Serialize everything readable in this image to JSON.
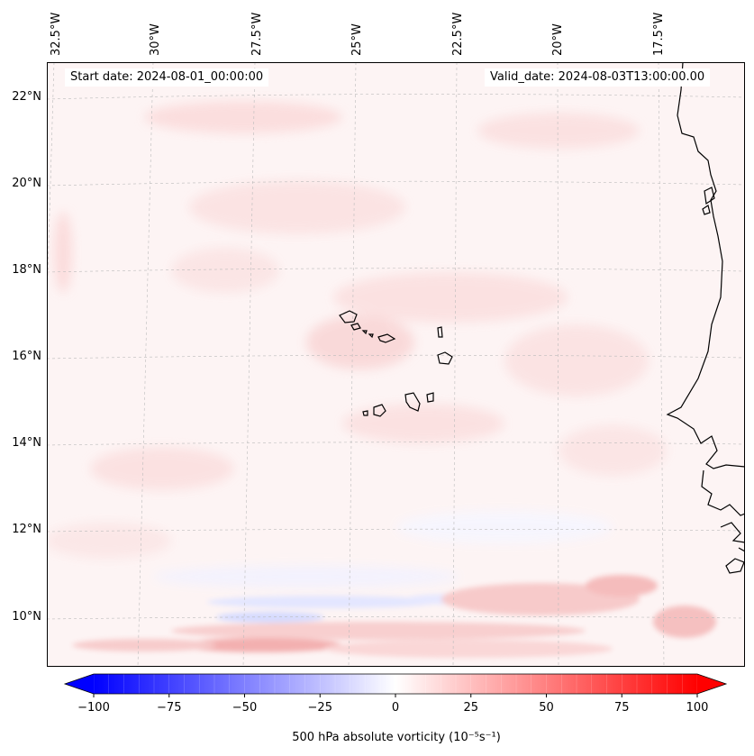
{
  "map": {
    "start_label": "Start date: 2024-08-01_00:00:00",
    "valid_label": "Valid_date: 2024-08-03T13:00:00.00",
    "lon_labels": [
      "32.5°W",
      "30°W",
      "27.5°W",
      "25°W",
      "22.5°W",
      "20°W",
      "17.5°W"
    ],
    "lat_labels": [
      "22°N",
      "20°N",
      "18°N",
      "16°N",
      "14°N",
      "12°N",
      "10°N"
    ],
    "gridlines": true,
    "region": "Cabo Verde and West African coast"
  },
  "colorbar": {
    "label": "500 hPa absolute vorticity (10⁻⁵s⁻¹)",
    "ticks": [
      "−100",
      "−75",
      "−50",
      "−25",
      "0",
      "25",
      "50",
      "75",
      "100"
    ],
    "min": -100,
    "max": 100,
    "colormap": "bwr",
    "extend": "both"
  },
  "colors": {
    "negative": "#0000ff",
    "zero": "#ffffff",
    "positive": "#ff0000",
    "coast": "#000000",
    "grid": "#bbbbbb"
  }
}
